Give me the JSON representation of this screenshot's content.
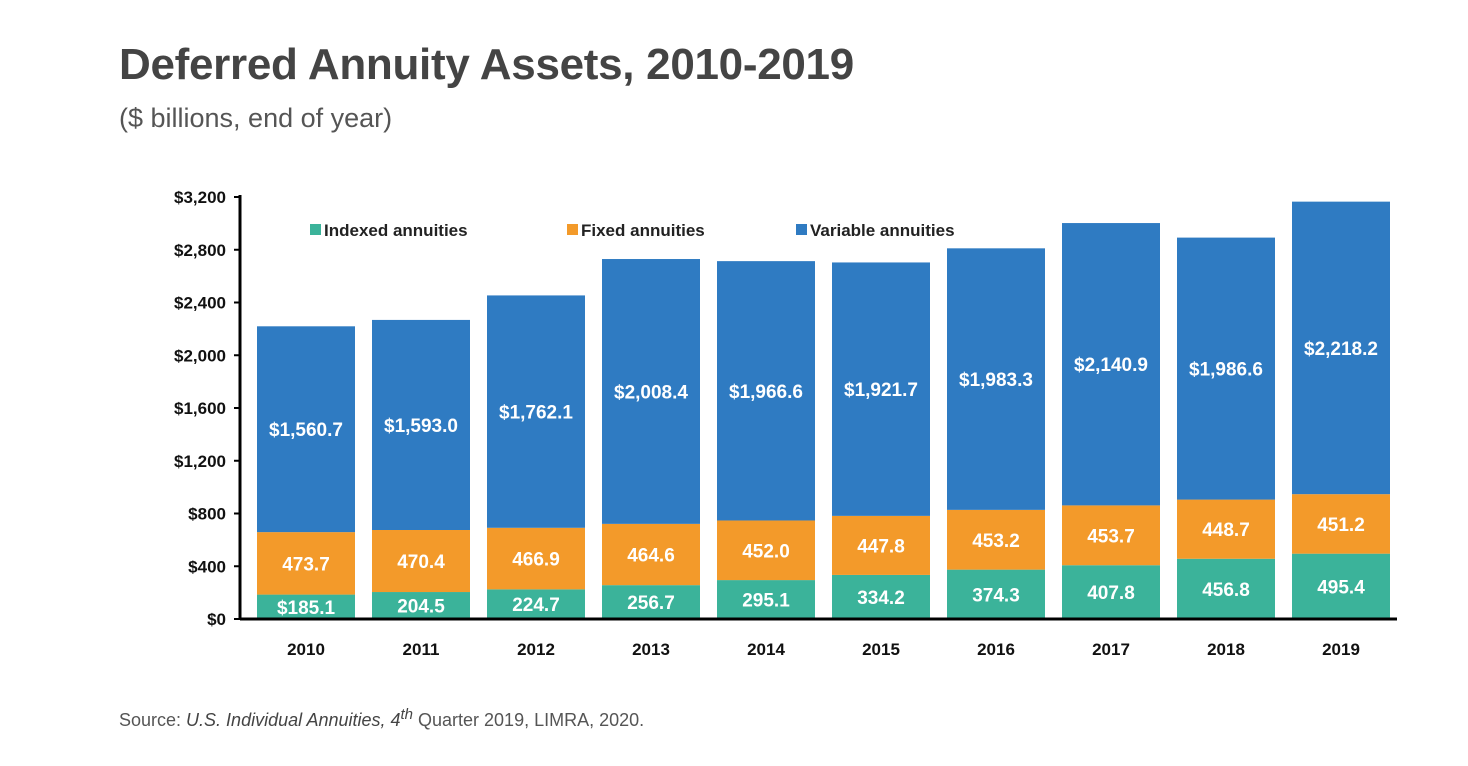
{
  "title": "Deferred Annuity Assets, 2010-2019",
  "subtitle": "($ billions, end of year)",
  "source": {
    "prefix": "Source: ",
    "italic": "U.S. Individual Annuities, 4",
    "sup": "th",
    "suffix": " Quarter 2019, LIMRA, 2020."
  },
  "chart_data": {
    "type": "bar",
    "stacked": true,
    "categories": [
      "2010",
      "2011",
      "2012",
      "2013",
      "2014",
      "2015",
      "2016",
      "2017",
      "2018",
      "2019"
    ],
    "series": [
      {
        "name": "Indexed annuities",
        "color": "#3bb39a",
        "values": [
          185.1,
          204.5,
          224.7,
          256.7,
          295.1,
          334.2,
          374.3,
          407.8,
          456.8,
          495.4
        ],
        "labels": [
          "$185.1",
          "204.5",
          "224.7",
          "256.7",
          "295.1",
          "334.2",
          "374.3",
          "407.8",
          "456.8",
          "495.4"
        ]
      },
      {
        "name": "Fixed annuities",
        "color": "#f39a2a",
        "values": [
          473.7,
          470.4,
          466.9,
          464.6,
          452.0,
          447.8,
          453.2,
          453.7,
          448.7,
          451.2
        ],
        "labels": [
          "473.7",
          "470.4",
          "466.9",
          "464.6",
          "452.0",
          "447.8",
          "453.2",
          "453.7",
          "448.7",
          "451.2"
        ]
      },
      {
        "name": "Variable annuities",
        "color": "#2f7bc2",
        "values": [
          1560.7,
          1593.0,
          1762.1,
          2008.4,
          1966.6,
          1921.7,
          1983.3,
          2140.9,
          1986.6,
          2218.2
        ],
        "labels": [
          "$1,560.7",
          "$1,593.0",
          "$1,762.1",
          "$2,008.4",
          "$1,966.6",
          "$1,921.7",
          "$1,983.3",
          "$2,140.9",
          "$1,986.6",
          "$2,218.2"
        ]
      }
    ],
    "yticks": [
      "$0",
      "$400",
      "$800",
      "$1,200",
      "$1,600",
      "$2,000",
      "$2,400",
      "$2,800",
      "$3,200"
    ],
    "ylim": [
      0,
      3200
    ],
    "legend": "top",
    "grid": false
  }
}
